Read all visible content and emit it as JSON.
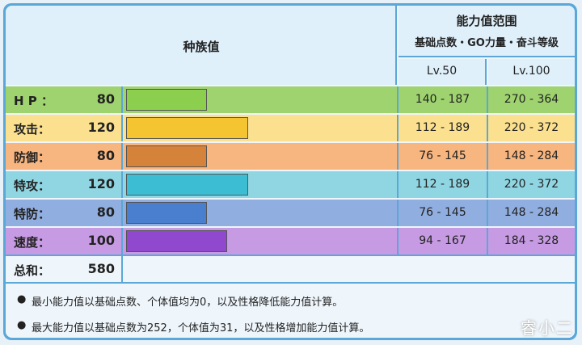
{
  "header": {
    "species_label": "种族值",
    "range_title": "能力值范围",
    "range_subtitle": "基础点数・GO力量・奋斗等级",
    "lv50": "Lv.50",
    "lv100": "Lv.100"
  },
  "stats": [
    {
      "label": "H P ：",
      "value": "80",
      "base": 80,
      "bar_color": "#8ccf4f",
      "row_color": "#9fd36f",
      "lv50": "140 - 187",
      "lv100": "270 - 364"
    },
    {
      "label": "攻击：",
      "value": "120",
      "base": 120,
      "bar_color": "#f4c531",
      "row_color": "#fbe18f",
      "lv50": "112 - 189",
      "lv100": "220 - 372"
    },
    {
      "label": "防御：",
      "value": "80",
      "base": 80,
      "bar_color": "#d5823a",
      "row_color": "#f7b57f",
      "lv50": "76 - 145",
      "lv100": "148 - 284"
    },
    {
      "label": "特攻：",
      "value": "120",
      "base": 120,
      "bar_color": "#3dbdd3",
      "row_color": "#8fd6e2",
      "lv50": "112 - 189",
      "lv100": "220 - 372"
    },
    {
      "label": "特防：",
      "value": "80",
      "base": 80,
      "bar_color": "#4a7fd0",
      "row_color": "#91aee0",
      "lv50": "76 - 145",
      "lv100": "148 - 284"
    },
    {
      "label": "速度：",
      "value": "100",
      "base": 100,
      "bar_color": "#9048cf",
      "row_color": "#c79be3",
      "lv50": "94 - 167",
      "lv100": "184 - 328"
    }
  ],
  "total": {
    "label": "总和：",
    "value": "580"
  },
  "notes": [
    "最小能力值以基础点数、个体值均为0，以及性格降低能力值计算。",
    "最大能力值以基础点数为252，个体值为31，以及性格增加能力值计算。"
  ],
  "watermark": "睿小二"
}
